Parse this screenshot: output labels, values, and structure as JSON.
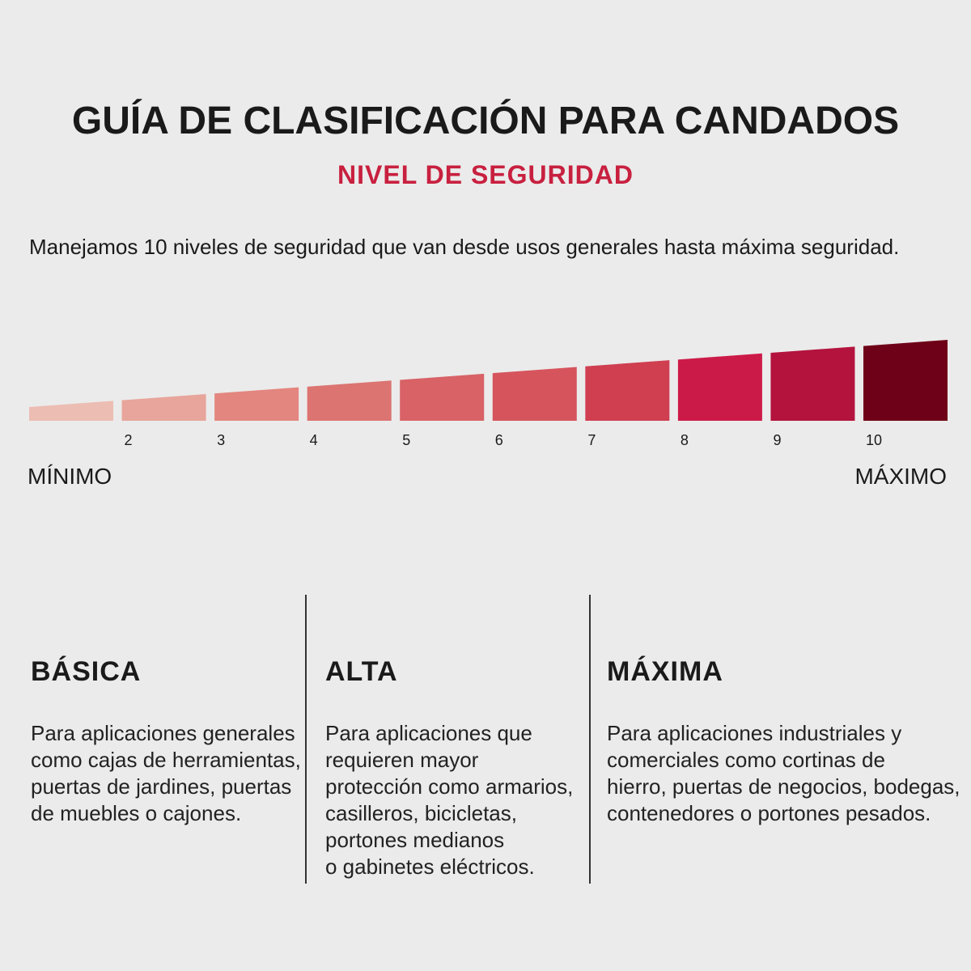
{
  "header": {
    "title": "GUÍA DE CLASIFICACIÓN PARA CANDADOS",
    "subtitle": "NIVEL DE SEGURIDAD",
    "subtitle_color": "#c8203f"
  },
  "intro": "Manejamos 10 niveles de seguridad que van desde usos generales hasta máxima seguridad.",
  "scale": {
    "levels": [
      {
        "level": 1,
        "label": "",
        "color": "#ecbdb3"
      },
      {
        "level": 2,
        "label": "2",
        "color": "#e8a59b"
      },
      {
        "level": 3,
        "label": "3",
        "color": "#e3867f"
      },
      {
        "level": 4,
        "label": "4",
        "color": "#dc7472"
      },
      {
        "level": 5,
        "label": "5",
        "color": "#d86266"
      },
      {
        "level": 6,
        "label": "6",
        "color": "#d6545c"
      },
      {
        "level": 7,
        "label": "7",
        "color": "#cf3f50"
      },
      {
        "level": 8,
        "label": "8",
        "color": "#cc1a48"
      },
      {
        "level": 9,
        "label": "9",
        "color": "#b3133d"
      },
      {
        "level": 10,
        "label": "10",
        "color": "#6e0017"
      }
    ],
    "min_label": "MÍNIMO",
    "max_label": "MÁXIMO"
  },
  "categories": [
    {
      "title": "BÁSICA",
      "text": "Para aplicaciones generales\ncomo cajas de herramientas,\npuertas de jardines, puertas\nde muebles o cajones."
    },
    {
      "title": "ALTA",
      "text": "Para aplicaciones que\nrequieren mayor\nprotección como armarios,\ncasilleros, bicicletas,\nportones medianos\no gabinetes eléctricos."
    },
    {
      "title": "MÁXIMA",
      "text": "Para aplicaciones industriales y\ncomerciales como cortinas de\nhierro, puertas de negocios, bodegas,\ncontenedores o portones pesados."
    }
  ]
}
